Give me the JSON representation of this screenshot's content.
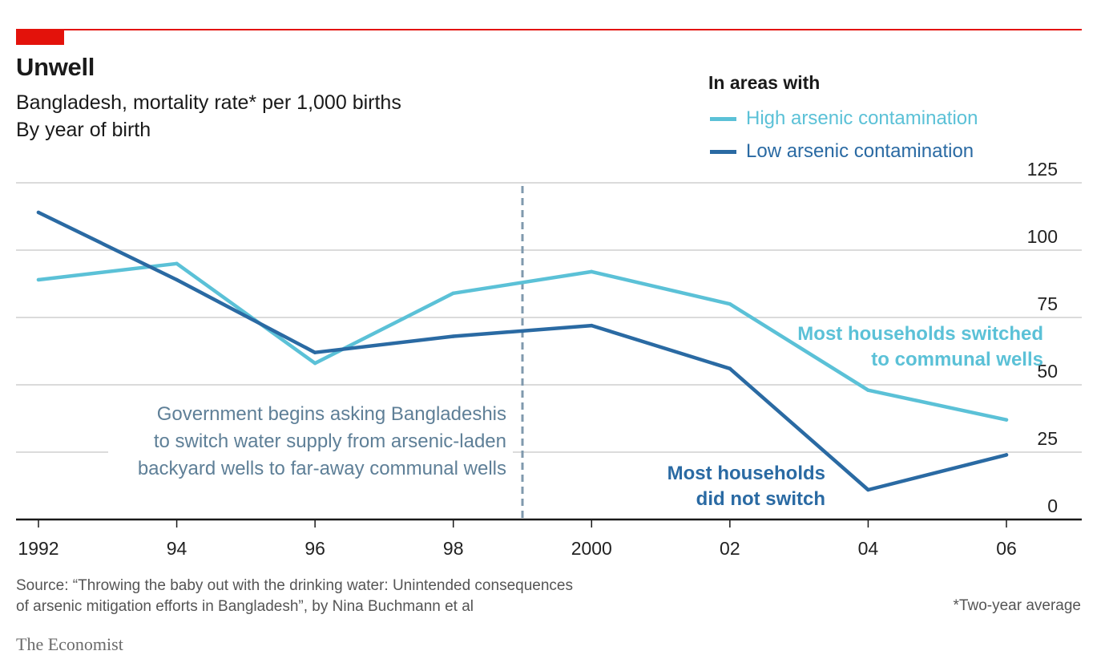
{
  "header": {
    "title": "Unwell",
    "subtitle": "Bangladesh, mortality rate* per 1,000 births",
    "subtitle2": "By year of birth"
  },
  "legend": {
    "title": "In areas with",
    "items": [
      {
        "label": "High arsenic contamination",
        "color": "#5bc1d7"
      },
      {
        "label": "Low arsenic contamination",
        "color": "#2a6aa3"
      }
    ]
  },
  "annotations": {
    "policy": [
      "Government begins asking Bangladeshis",
      "to switch water supply from arsenic-laden",
      "backyard wells to far-away communal wells"
    ],
    "high": [
      "Most households switched",
      "to communal wells"
    ],
    "low": [
      "Most households",
      "did not switch"
    ]
  },
  "footer": {
    "source": [
      "Source: “Throwing the baby out with the drinking water: Unintended consequences",
      "of arsenic mitigation efforts in Bangladesh”, by Nina Buchmann et al"
    ],
    "footnote": "*Two-year average",
    "brand": "The Economist"
  },
  "chart_data": {
    "type": "line",
    "x": [
      1992,
      1994,
      1996,
      1998,
      2000,
      2002,
      2004,
      2006
    ],
    "x_tick_labels": [
      "1992",
      "94",
      "96",
      "98",
      "2000",
      "02",
      "04",
      "06"
    ],
    "y_ticks": [
      0,
      25,
      50,
      75,
      100,
      125
    ],
    "ylim": [
      0,
      125
    ],
    "series": [
      {
        "name": "High arsenic contamination",
        "color": "#5bc1d7",
        "values": [
          89,
          95,
          58,
          84,
          92,
          80,
          48,
          37
        ]
      },
      {
        "name": "Low arsenic contamination",
        "color": "#2a6aa3",
        "values": [
          114,
          89,
          62,
          68,
          72,
          56,
          11,
          24
        ]
      }
    ],
    "marker_year": 1999,
    "grid": true
  }
}
